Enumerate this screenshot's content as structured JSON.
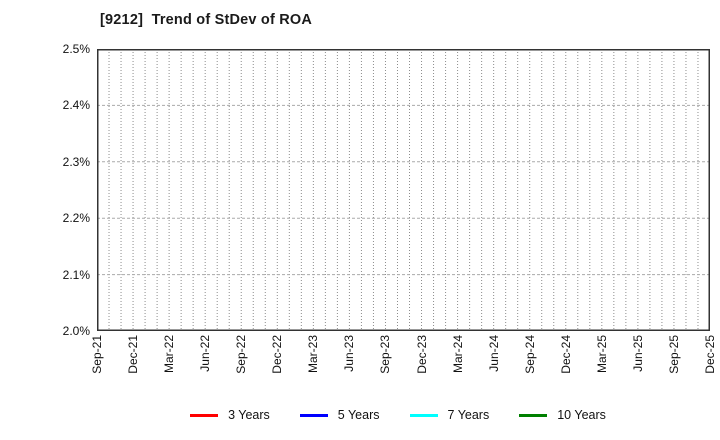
{
  "chart_data": {
    "type": "line",
    "title": "[9212]  Trend of StDev of ROA",
    "xlabel": "",
    "ylabel": "",
    "ylim": [
      2.0,
      2.5
    ],
    "y_ticks": [
      2.0,
      2.1,
      2.2,
      2.3,
      2.4,
      2.5
    ],
    "y_tick_labels": [
      "2.0%",
      "2.1%",
      "2.2%",
      "2.3%",
      "2.4%",
      "2.5%"
    ],
    "x_tick_labels": [
      "Sep-21",
      "Dec-21",
      "Mar-22",
      "Jun-22",
      "Sep-22",
      "Dec-22",
      "Mar-23",
      "Jun-23",
      "Sep-23",
      "Dec-23",
      "Mar-24",
      "Jun-24",
      "Sep-24",
      "Dec-24",
      "Mar-25",
      "Jun-25",
      "Sep-25",
      "Dec-25"
    ],
    "x_label_interval_months": 3,
    "x_months_span": 51,
    "grid": "on",
    "grid_vertical_interval": "monthly",
    "legend_position": "bottom",
    "series": [
      {
        "name": "3 Years",
        "color": "#ff0000",
        "values": []
      },
      {
        "name": "5 Years",
        "color": "#0000ff",
        "values": []
      },
      {
        "name": "7 Years",
        "color": "#00ffff",
        "values": []
      },
      {
        "name": "10 Years",
        "color": "#008000",
        "values": []
      }
    ],
    "colors": {
      "vertical_grid": "#8c8c8c",
      "horizontal_grid": "#aaaaaa",
      "plot_border": "#333333",
      "text": "#111111",
      "background": "#ffffff"
    }
  }
}
